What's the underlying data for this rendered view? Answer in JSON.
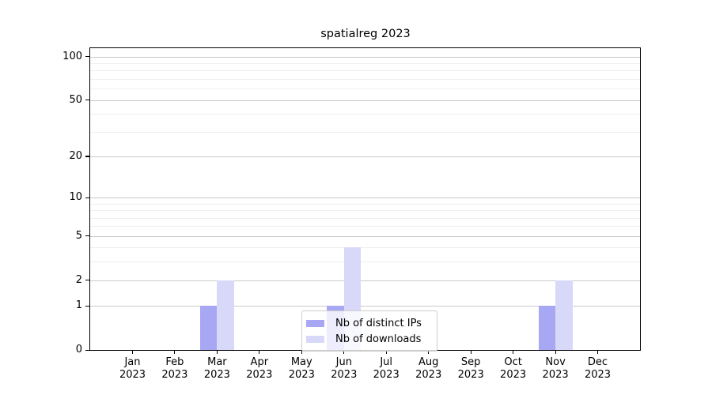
{
  "chart_data": {
    "type": "bar",
    "title": "spatialreg 2023",
    "categories": [
      "Jan",
      "Feb",
      "Mar",
      "Apr",
      "May",
      "Jun",
      "Jul",
      "Aug",
      "Sep",
      "Oct",
      "Nov",
      "Dec"
    ],
    "year_label": "2023",
    "series": [
      {
        "name": "Nb of distinct IPs",
        "color": "#a7a7f3",
        "values": [
          0,
          0,
          1,
          0,
          0,
          1,
          0,
          0,
          0,
          0,
          1,
          0
        ]
      },
      {
        "name": "Nb of downloads",
        "color": "#d8d8f9",
        "values": [
          0,
          0,
          2,
          0,
          0,
          4,
          0,
          0,
          0,
          0,
          2,
          0
        ]
      }
    ],
    "yscale": "log1p",
    "yticks": [
      0,
      1,
      2,
      5,
      10,
      20,
      50,
      100
    ],
    "minor_yticks": [
      3,
      4,
      6,
      7,
      8,
      9,
      30,
      40,
      60,
      70,
      80,
      90
    ],
    "ylim": [
      0,
      114
    ],
    "grid": true,
    "legend_position": "lower center"
  }
}
